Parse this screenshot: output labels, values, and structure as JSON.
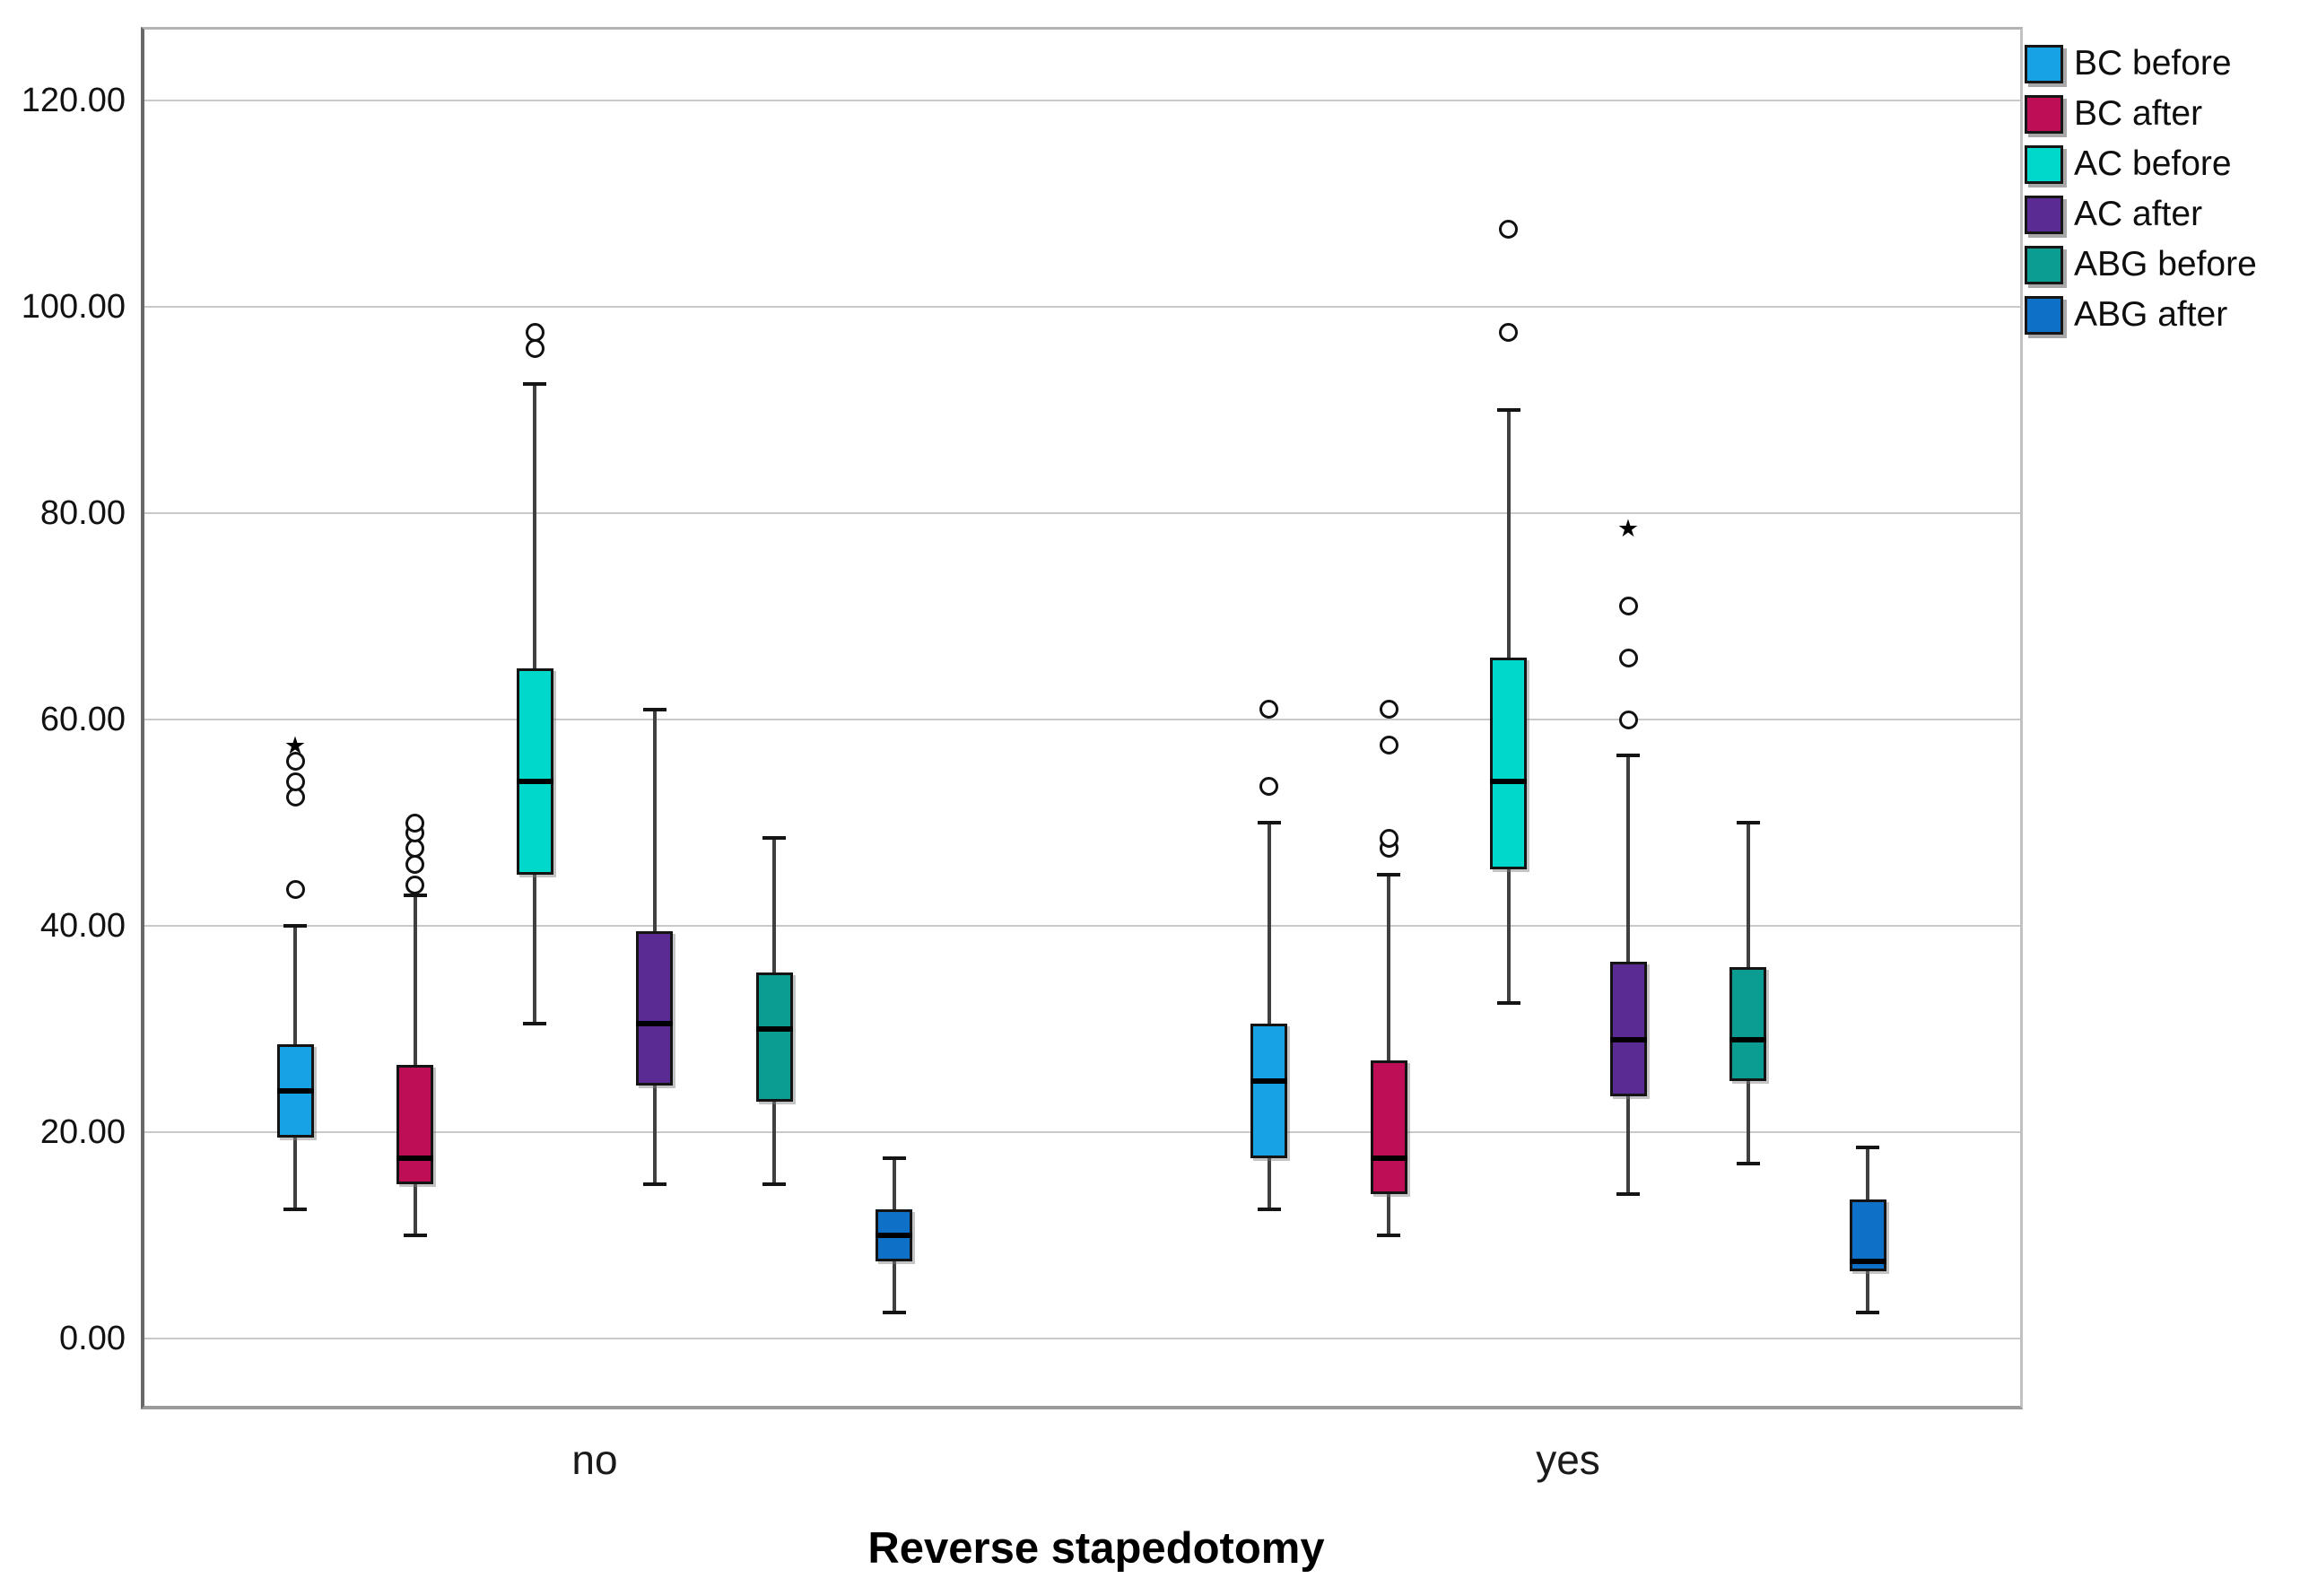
{
  "figure": {
    "background": "#ffffff"
  },
  "axis": {
    "x_title": "Reverse stapedotomy",
    "categories": [
      "no",
      "yes"
    ],
    "ytick_labels": [
      "0.00",
      "20.00",
      "40.00",
      "60.00",
      "80.00",
      "100.00",
      "120.00"
    ]
  },
  "legend": {
    "position": "top-right",
    "items": [
      "BC before",
      "BC after",
      "AC before",
      "AC after",
      "ABG before",
      "ABG after"
    ]
  },
  "chart_data": {
    "type": "boxplot",
    "title": "",
    "xlabel": "Reverse stapedotomy",
    "ylabel": "",
    "ylim": [
      -6.5,
      127
    ],
    "yticks": [
      0,
      20,
      40,
      60,
      80,
      100,
      120
    ],
    "ytick_labels": [
      "0.00",
      "20.00",
      "40.00",
      "60.00",
      "80.00",
      "100.00",
      "120.00"
    ],
    "grid": "horizontal",
    "legend_position": "top-right",
    "groups": [
      "no",
      "yes"
    ],
    "series": [
      {
        "name": "BC before",
        "color": "#17A2E6",
        "boxes": [
          {
            "group": "no",
            "whisker_low": 12.5,
            "q1": 19.5,
            "median": 24,
            "q3": 28.5,
            "whisker_high": 40,
            "outliers": [
              43.5,
              52.5,
              54,
              56
            ],
            "extremes": [
              57.5
            ]
          },
          {
            "group": "yes",
            "whisker_low": 12.5,
            "q1": 17.5,
            "median": 25,
            "q3": 30.5,
            "whisker_high": 50,
            "outliers": [
              53.5,
              61
            ],
            "extremes": []
          }
        ]
      },
      {
        "name": "BC after",
        "color": "#BE0E56",
        "boxes": [
          {
            "group": "no",
            "whisker_low": 10,
            "q1": 15,
            "median": 17.5,
            "q3": 26.5,
            "whisker_high": 43,
            "outliers": [
              44,
              46,
              47.5,
              49,
              50
            ],
            "extremes": []
          },
          {
            "group": "yes",
            "whisker_low": 10,
            "q1": 14,
            "median": 17.5,
            "q3": 27,
            "whisker_high": 45,
            "outliers": [
              47.5,
              48.5,
              57.5,
              61
            ],
            "extremes": []
          }
        ]
      },
      {
        "name": "AC before",
        "color": "#00D8CB",
        "boxes": [
          {
            "group": "no",
            "whisker_low": 30.5,
            "q1": 45,
            "median": 54,
            "q3": 65,
            "whisker_high": 92.5,
            "outliers": [
              96,
              97.5
            ],
            "extremes": []
          },
          {
            "group": "yes",
            "whisker_low": 32.5,
            "q1": 45.5,
            "median": 54,
            "q3": 66,
            "whisker_high": 90,
            "outliers": [
              97.5,
              107.5
            ],
            "extremes": []
          }
        ]
      },
      {
        "name": "AC after",
        "color": "#5B2B94",
        "boxes": [
          {
            "group": "no",
            "whisker_low": 15,
            "q1": 24.5,
            "median": 30.5,
            "q3": 39.5,
            "whisker_high": 61,
            "outliers": [],
            "extremes": []
          },
          {
            "group": "yes",
            "whisker_low": 14,
            "q1": 23.5,
            "median": 29,
            "q3": 36.5,
            "whisker_high": 56.5,
            "outliers": [
              60,
              66,
              71
            ],
            "extremes": [
              78.5
            ]
          }
        ]
      },
      {
        "name": "ABG before",
        "color": "#0B9D92",
        "boxes": [
          {
            "group": "no",
            "whisker_low": 15,
            "q1": 23,
            "median": 30,
            "q3": 35.5,
            "whisker_high": 48.5,
            "outliers": [],
            "extremes": []
          },
          {
            "group": "yes",
            "whisker_low": 17,
            "q1": 25,
            "median": 29,
            "q3": 36,
            "whisker_high": 50,
            "outliers": [],
            "extremes": []
          }
        ]
      },
      {
        "name": "ABG after",
        "color": "#0F70C8",
        "boxes": [
          {
            "group": "no",
            "whisker_low": 2.5,
            "q1": 7.5,
            "median": 10,
            "q3": 12.5,
            "whisker_high": 17.5,
            "outliers": [],
            "extremes": []
          },
          {
            "group": "yes",
            "whisker_low": 2.5,
            "q1": 6.5,
            "median": 7.5,
            "q3": 13.5,
            "whisker_high": 18.5,
            "outliers": [],
            "extremes": []
          }
        ]
      }
    ]
  }
}
